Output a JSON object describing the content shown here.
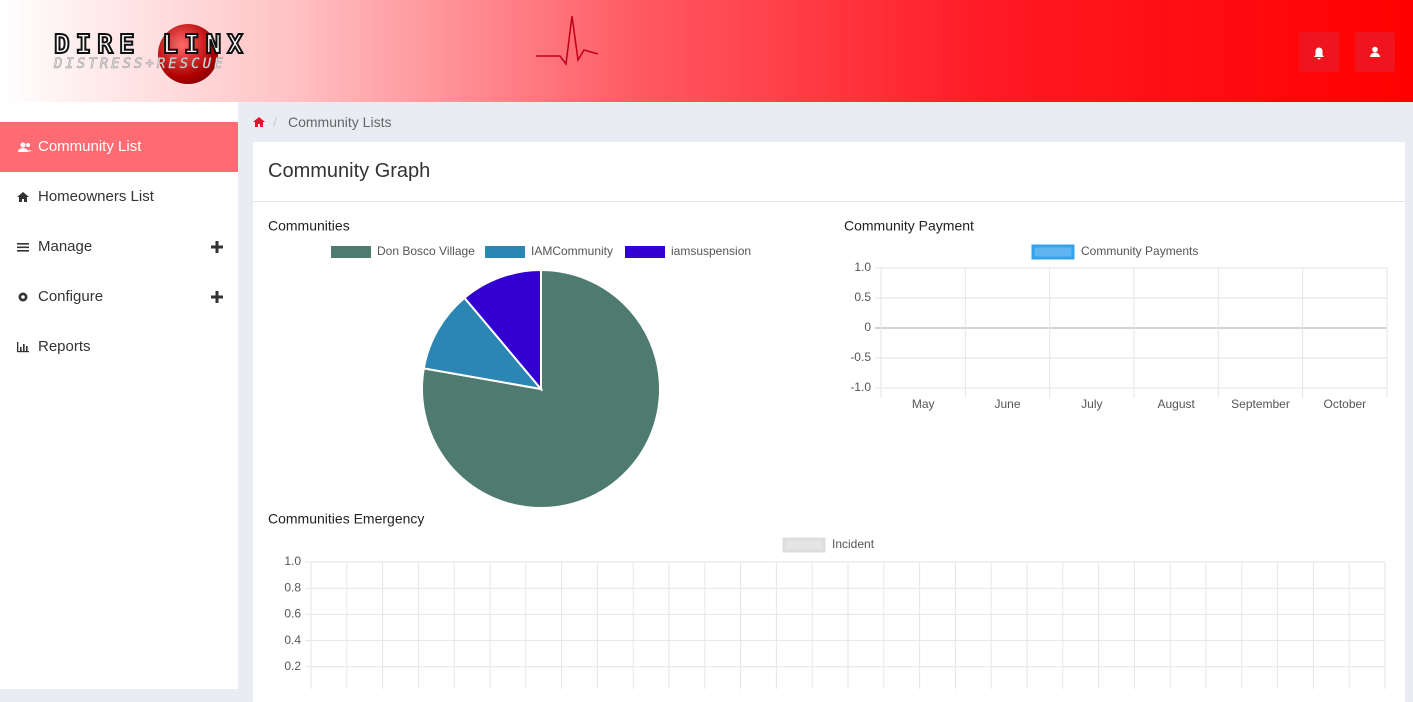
{
  "header": {
    "logo_title": "DIRE LINX",
    "logo_subtitle": "DISTRESS+RESCUE"
  },
  "sidebar": {
    "items": [
      "Community List",
      "Homeowners List",
      "Manage",
      "Configure",
      "Reports"
    ],
    "active": 0
  },
  "breadcrumb": {
    "current": "Community Lists"
  },
  "card": {
    "title": "Community Graph"
  },
  "chart_data": [
    {
      "type": "pie",
      "title": "Communities",
      "categories": [
        "Don Bosco Village",
        "IAMCommunity",
        "iamsuspension"
      ],
      "values": [
        7,
        1,
        1
      ],
      "colors": [
        "#4f7a70",
        "#2b86b3",
        "#3300d2"
      ]
    },
    {
      "type": "line",
      "title": "Community Payment",
      "categories": [
        "May",
        "June",
        "July",
        "August",
        "September",
        "October"
      ],
      "series": [
        {
          "name": "Community Payments",
          "color": "#36a2eb",
          "values": [
            null,
            null,
            null,
            null,
            null,
            null
          ]
        }
      ],
      "ylim": [
        -1,
        1
      ],
      "yticks": [
        {
          "value": 1,
          "label": "1.0"
        },
        0.5,
        0,
        -0.5,
        {
          "value": -1,
          "label": "-1.0"
        }
      ],
      "grid": true
    },
    {
      "type": "line",
      "title": "Communities Emergency",
      "categories": [
        null,
        null,
        null,
        null,
        null,
        null,
        null,
        null,
        null,
        null,
        null,
        null,
        null,
        null,
        null,
        null,
        null,
        null,
        null,
        null,
        null,
        null,
        null,
        null,
        null,
        null,
        null,
        null,
        null,
        null
      ],
      "series": [
        {
          "name": "Incident",
          "color": "#dddddd",
          "values": [
            null,
            null,
            null,
            null,
            null,
            null,
            null,
            null,
            null,
            null,
            null,
            null,
            null,
            null,
            null,
            null,
            null,
            null,
            null,
            null,
            null,
            null,
            null,
            null,
            null,
            null,
            null,
            null,
            null,
            null
          ]
        }
      ],
      "ylim": [
        0,
        1
      ],
      "yticks": [
        {
          "value": 1,
          "label": "1.0"
        },
        0.8,
        0.6,
        0.4,
        0.2
      ],
      "grid": true
    }
  ]
}
